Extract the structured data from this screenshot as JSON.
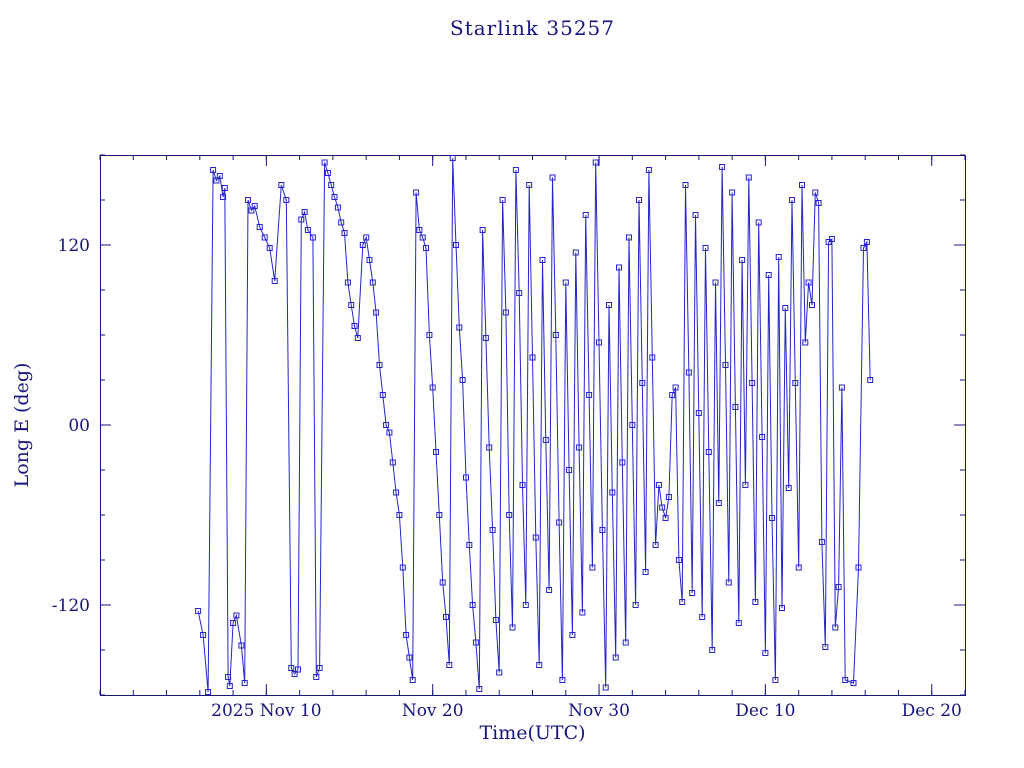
{
  "page": {
    "background": "#ffffff"
  },
  "colors": {
    "text": "#15157e",
    "axes": "#15157e",
    "data": "#2424c8"
  },
  "chart_data": {
    "type": "line",
    "title": "Starlink 35257",
    "xlabel": "Time(UTC)",
    "ylabel": "Long E (deg)",
    "x_unit": "days (t=10 corresponds to 2025 Nov 10, t=40 to Dec 10)",
    "xlim": [
      0,
      52
    ],
    "ylim": [
      -180,
      180
    ],
    "x_minor_step": 2,
    "y_minor_step": 30,
    "marker": "open-square",
    "marker_size": 5,
    "legend": "none",
    "grid": false,
    "x_ticks": [
      {
        "value": 10,
        "label": "2025 Nov 10"
      },
      {
        "value": 20,
        "label": "Nov 20"
      },
      {
        "value": 30,
        "label": "Nov 30"
      },
      {
        "value": 40,
        "label": "Dec 10"
      },
      {
        "value": 50,
        "label": "Dec 20"
      }
    ],
    "y_ticks": [
      {
        "value": 120,
        "label": "120"
      },
      {
        "value": 0,
        "label": "00"
      },
      {
        "value": -120,
        "label": "-120"
      }
    ],
    "points": [
      [
        5.9,
        -124
      ],
      [
        6.2,
        -140
      ],
      [
        6.5,
        -178
      ],
      [
        6.8,
        170
      ],
      [
        7.0,
        163
      ],
      [
        7.2,
        166
      ],
      [
        7.4,
        152
      ],
      [
        7.5,
        158
      ],
      [
        7.7,
        -168
      ],
      [
        7.8,
        -174
      ],
      [
        8.0,
        -132
      ],
      [
        8.2,
        -127
      ],
      [
        8.5,
        -147
      ],
      [
        8.7,
        -172
      ],
      [
        8.9,
        150
      ],
      [
        9.1,
        143
      ],
      [
        9.3,
        146
      ],
      [
        9.6,
        132
      ],
      [
        9.9,
        125
      ],
      [
        10.2,
        118
      ],
      [
        10.5,
        96
      ],
      [
        10.9,
        160
      ],
      [
        11.2,
        150
      ],
      [
        11.5,
        -162
      ],
      [
        11.7,
        -166
      ],
      [
        11.9,
        -163
      ],
      [
        12.1,
        137
      ],
      [
        12.3,
        142
      ],
      [
        12.5,
        130
      ],
      [
        12.8,
        125
      ],
      [
        13.0,
        -168
      ],
      [
        13.2,
        -162
      ],
      [
        13.5,
        175
      ],
      [
        13.7,
        168
      ],
      [
        13.9,
        160
      ],
      [
        14.1,
        152
      ],
      [
        14.3,
        145
      ],
      [
        14.5,
        135
      ],
      [
        14.7,
        128
      ],
      [
        14.9,
        95
      ],
      [
        15.1,
        80
      ],
      [
        15.3,
        66
      ],
      [
        15.5,
        58
      ],
      [
        15.8,
        120
      ],
      [
        16.0,
        125
      ],
      [
        16.2,
        110
      ],
      [
        16.4,
        95
      ],
      [
        16.6,
        75
      ],
      [
        16.8,
        40
      ],
      [
        17.0,
        20
      ],
      [
        17.2,
        0
      ],
      [
        17.4,
        -5
      ],
      [
        17.6,
        -25
      ],
      [
        17.8,
        -45
      ],
      [
        18.0,
        -60
      ],
      [
        18.2,
        -95
      ],
      [
        18.4,
        -140
      ],
      [
        18.6,
        -155
      ],
      [
        18.8,
        -170
      ],
      [
        19.0,
        155
      ],
      [
        19.2,
        130
      ],
      [
        19.4,
        125
      ],
      [
        19.6,
        118
      ],
      [
        19.8,
        60
      ],
      [
        20.0,
        25
      ],
      [
        20.2,
        -18
      ],
      [
        20.4,
        -60
      ],
      [
        20.6,
        -105
      ],
      [
        20.8,
        -128
      ],
      [
        21.0,
        -160
      ],
      [
        21.2,
        178
      ],
      [
        21.4,
        120
      ],
      [
        21.6,
        65
      ],
      [
        21.8,
        30
      ],
      [
        22.0,
        -35
      ],
      [
        22.2,
        -80
      ],
      [
        22.4,
        -120
      ],
      [
        22.6,
        -145
      ],
      [
        22.8,
        -176
      ],
      [
        23.0,
        130
      ],
      [
        23.2,
        58
      ],
      [
        23.4,
        -15
      ],
      [
        23.6,
        -70
      ],
      [
        23.8,
        -130
      ],
      [
        24.0,
        -165
      ],
      [
        24.2,
        150
      ],
      [
        24.4,
        75
      ],
      [
        24.6,
        -60
      ],
      [
        24.8,
        -135
      ],
      [
        25.0,
        170
      ],
      [
        25.2,
        88
      ],
      [
        25.4,
        -40
      ],
      [
        25.6,
        -120
      ],
      [
        25.8,
        160
      ],
      [
        26.0,
        45
      ],
      [
        26.2,
        -75
      ],
      [
        26.4,
        -160
      ],
      [
        26.6,
        110
      ],
      [
        26.8,
        -10
      ],
      [
        27.0,
        -110
      ],
      [
        27.2,
        165
      ],
      [
        27.4,
        60
      ],
      [
        27.6,
        -65
      ],
      [
        27.8,
        -170
      ],
      [
        28.0,
        95
      ],
      [
        28.2,
        -30
      ],
      [
        28.4,
        -140
      ],
      [
        28.6,
        115
      ],
      [
        28.8,
        -15
      ],
      [
        29.0,
        -125
      ],
      [
        29.2,
        140
      ],
      [
        29.4,
        20
      ],
      [
        29.6,
        -95
      ],
      [
        29.8,
        175
      ],
      [
        30.0,
        55
      ],
      [
        30.2,
        -70
      ],
      [
        30.4,
        -175
      ],
      [
        30.6,
        80
      ],
      [
        30.8,
        -45
      ],
      [
        31.0,
        -155
      ],
      [
        31.2,
        105
      ],
      [
        31.4,
        -25
      ],
      [
        31.6,
        -145
      ],
      [
        31.8,
        125
      ],
      [
        32.0,
        0
      ],
      [
        32.2,
        -120
      ],
      [
        32.4,
        150
      ],
      [
        32.6,
        28
      ],
      [
        32.8,
        -98
      ],
      [
        33.0,
        170
      ],
      [
        33.2,
        45
      ],
      [
        33.4,
        -80
      ],
      [
        33.6,
        -40
      ],
      [
        33.8,
        -55
      ],
      [
        34.0,
        -62
      ],
      [
        34.2,
        -48
      ],
      [
        34.4,
        20
      ],
      [
        34.6,
        25
      ],
      [
        34.8,
        -90
      ],
      [
        35.0,
        -118
      ],
      [
        35.2,
        160
      ],
      [
        35.4,
        35
      ],
      [
        35.6,
        -112
      ],
      [
        35.8,
        140
      ],
      [
        36.0,
        8
      ],
      [
        36.2,
        -128
      ],
      [
        36.4,
        118
      ],
      [
        36.6,
        -18
      ],
      [
        36.8,
        -150
      ],
      [
        37.0,
        95
      ],
      [
        37.2,
        -52
      ],
      [
        37.4,
        172
      ],
      [
        37.6,
        40
      ],
      [
        37.8,
        -105
      ],
      [
        38.0,
        155
      ],
      [
        38.2,
        12
      ],
      [
        38.4,
        -132
      ],
      [
        38.6,
        110
      ],
      [
        38.8,
        -40
      ],
      [
        39.0,
        165
      ],
      [
        39.2,
        28
      ],
      [
        39.4,
        -118
      ],
      [
        39.6,
        135
      ],
      [
        39.8,
        -8
      ],
      [
        40.0,
        -152
      ],
      [
        40.2,
        100
      ],
      [
        40.4,
        -62
      ],
      [
        40.6,
        -170
      ],
      [
        40.8,
        112
      ],
      [
        41.0,
        -122
      ],
      [
        41.2,
        78
      ],
      [
        41.4,
        -42
      ],
      [
        41.6,
        150
      ],
      [
        41.8,
        28
      ],
      [
        42.0,
        -95
      ],
      [
        42.2,
        160
      ],
      [
        42.4,
        55
      ],
      [
        42.6,
        95
      ],
      [
        42.8,
        80
      ],
      [
        43.0,
        155
      ],
      [
        43.2,
        148
      ],
      [
        43.4,
        -78
      ],
      [
        43.6,
        -148
      ],
      [
        43.8,
        122
      ],
      [
        44.0,
        124
      ],
      [
        44.2,
        -135
      ],
      [
        44.4,
        -108
      ],
      [
        44.6,
        25
      ],
      [
        44.8,
        -170
      ],
      [
        45.3,
        -172
      ],
      [
        45.6,
        -95
      ],
      [
        45.9,
        118
      ],
      [
        46.1,
        122
      ],
      [
        46.3,
        30
      ]
    ]
  }
}
